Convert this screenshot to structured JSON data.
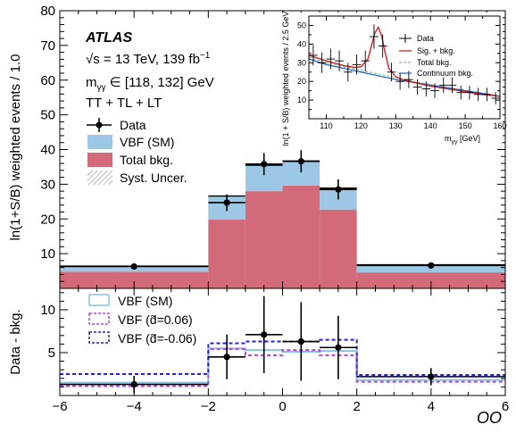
{
  "chart_data": {
    "type": "histogram",
    "xlabel": "OO",
    "xlim": [
      -6,
      6
    ],
    "x_ticks": [
      "−6",
      "−4",
      "−2",
      "0",
      "2",
      "4",
      "6"
    ],
    "annotation": {
      "experiment": "ATLAS",
      "energy": "√s = 13 TeV, 139 fb",
      "energy_sup": "−1",
      "mass_window_prefix": "m",
      "mass_window_sub": "γγ",
      "mass_window_rest": " ∈ [118, 132] GeV",
      "categories": "TT + TL + LT"
    },
    "colors": {
      "vbf_sm": "#9dc8e5",
      "total_bkg": "#d26a79",
      "vbf_sm_outline": "#87c3dd",
      "vbf_dpos": "#b146e0",
      "vbf_dneg": "#2121d6",
      "sig_bkg": "#d2232a",
      "total_bkg_line": "#7fc87f",
      "continuum": "#1f56d6"
    },
    "main": {
      "ylabel": "ln(1+S/B) weighted events / 1.0",
      "ylim": [
        0,
        80
      ],
      "y_ticks": [
        "10",
        "20",
        "30",
        "40",
        "50",
        "60",
        "70",
        "80"
      ],
      "bins": [
        -6,
        -2,
        -1,
        0,
        1,
        2,
        6
      ],
      "total_bkg": [
        4.8,
        19.8,
        28.0,
        29.6,
        22.7,
        4.6
      ],
      "vbf_sm": [
        1.6,
        6.8,
        7.5,
        7.1,
        6.2,
        2.2
      ],
      "data": {
        "x": [
          -4,
          -1.5,
          -0.5,
          0.5,
          1.5,
          4
        ],
        "y": [
          6.3,
          24.7,
          35.8,
          36.6,
          28.5,
          6.6
        ],
        "yerr": [
          0.5,
          2.4,
          3.2,
          3.2,
          2.9,
          0.5
        ],
        "xerr": [
          2,
          0.5,
          0.5,
          0.5,
          0.5,
          2
        ]
      },
      "legend": {
        "data": "Data",
        "vbf": "VBF (SM)",
        "bkg": "Total bkg.",
        "syst": "Syst. Uncer."
      }
    },
    "ratio": {
      "ylabel": "Data - bkg.",
      "ylim": [
        0,
        12.5
      ],
      "y_ticks": [
        "5",
        "10"
      ],
      "vbf_sm": [
        1.5,
        5.5,
        5.3,
        5.1,
        5.2,
        1.8
      ],
      "vbf_dpos": [
        1.1,
        5.4,
        4.7,
        5.3,
        4.7,
        1.6
      ],
      "vbf_dneg": [
        2.5,
        6.1,
        6.3,
        6.3,
        6.5,
        2.4
      ],
      "data": {
        "x": [
          -4,
          -1.5,
          -0.5,
          0.5,
          1.5,
          4
        ],
        "y": [
          1.3,
          4.5,
          7.1,
          6.3,
          5.6,
          2.2
        ],
        "yerr": [
          1.0,
          2.6,
          4.5,
          4.6,
          3.7,
          1.0
        ],
        "xerr": [
          2,
          0.5,
          0.5,
          0.5,
          0.5,
          2
        ]
      },
      "legend": {
        "vbf_sm": "VBF (SM)",
        "vbf_dpos": "VBF (d̃=0.06)",
        "vbf_dneg": "VBF (d̃=-0.06)"
      }
    },
    "inset": {
      "ylabel": "ln(1 + S/B) weighted events / 2.5 GeV",
      "xlabel_prefix": "m",
      "xlabel_sub": "γγ",
      "xlabel_rest": " [GeV]",
      "xlim": [
        105,
        160
      ],
      "ylim": [
        0,
        55
      ],
      "x_ticks": [
        "110",
        "120",
        "130",
        "140",
        "150",
        "160"
      ],
      "y_ticks": [
        "10",
        "20",
        "30",
        "40",
        "50"
      ],
      "data": {
        "x": [
          106.25,
          108.75,
          111.25,
          113.75,
          116.25,
          118.75,
          121.25,
          123.75,
          126.25,
          128.75,
          131.25,
          133.75,
          136.25,
          138.75,
          141.25,
          143.75,
          146.25,
          148.75,
          151.25,
          153.75,
          156.25,
          158.75
        ],
        "y": [
          34,
          30,
          32,
          31,
          25,
          29,
          31,
          44,
          39,
          25,
          20,
          21,
          17,
          16,
          15,
          18,
          18,
          14,
          14,
          13,
          13,
          11
        ],
        "yerr": [
          5.5,
          5.5,
          5.6,
          5.6,
          5.0,
          5.4,
          5.6,
          6.6,
          6.2,
          5.0,
          4.5,
          4.6,
          4.1,
          4.0,
          3.9,
          4.2,
          4.2,
          3.7,
          3.7,
          3.6,
          3.6,
          3.3
        ]
      },
      "sig_bkg": {
        "x": [
          105,
          110,
          115,
          118,
          120,
          122,
          123,
          124,
          125,
          126,
          127,
          128,
          130,
          132,
          135,
          140,
          145,
          150,
          155,
          160
        ],
        "y": [
          34,
          31,
          28.5,
          27.5,
          27.8,
          32,
          39,
          46,
          49,
          44,
          35,
          27,
          22.5,
          21,
          19.5,
          17.5,
          16,
          14.5,
          13,
          12
        ]
      },
      "continuum": {
        "x": [
          105,
          110,
          115,
          120,
          125,
          130,
          135,
          140,
          145,
          150,
          155,
          160
        ],
        "y": [
          32,
          29,
          27,
          25,
          23,
          21,
          19.5,
          18,
          16.5,
          15,
          13.5,
          12
        ]
      },
      "total_bkg": {
        "x": [
          105,
          110,
          115,
          120,
          125,
          130,
          135,
          140,
          145,
          150,
          155,
          160
        ],
        "y": [
          33,
          30,
          27.8,
          25.9,
          24,
          22,
          20,
          18.3,
          16.8,
          15.3,
          13.8,
          12.2
        ]
      },
      "legend": {
        "data": "Data",
        "sig_bkg": "Sig. + bkg.",
        "total_bkg": "Total bkg.",
        "continuum": "Continuum bkg."
      }
    }
  }
}
